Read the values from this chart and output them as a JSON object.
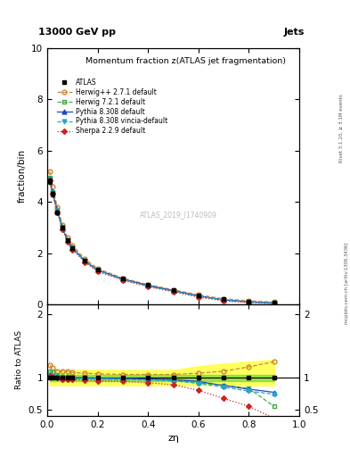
{
  "title_top": "13000 GeV pp",
  "title_right": "Jets",
  "plot_title": "Momentum fraction z(ATLAS jet fragmentation)",
  "xlabel": "zη",
  "ylabel_main": "fraction/bin",
  "ylabel_ratio": "Ratio to ATLAS",
  "watermark": "ATLAS_2019_I1740909",
  "right_label": "Rivet 3.1.10, ≥ 3.1M events",
  "arxiv_label": "mcplots.cern.ch [arXiv:1306.3436]",
  "x_data": [
    0.01,
    0.02,
    0.04,
    0.06,
    0.08,
    0.1,
    0.15,
    0.2,
    0.3,
    0.4,
    0.5,
    0.6,
    0.7,
    0.8,
    0.9
  ],
  "atlas_y": [
    4.8,
    4.3,
    3.6,
    3.0,
    2.5,
    2.2,
    1.7,
    1.35,
    1.0,
    0.75,
    0.55,
    0.35,
    0.2,
    0.12,
    0.07
  ],
  "atlas_err": [
    0.1,
    0.08,
    0.07,
    0.06,
    0.05,
    0.04,
    0.03,
    0.025,
    0.02,
    0.015,
    0.012,
    0.01,
    0.008,
    0.006,
    0.004
  ],
  "herwig_pp_y": [
    5.2,
    4.6,
    3.8,
    3.1,
    2.6,
    2.3,
    1.77,
    1.4,
    1.02,
    0.77,
    0.57,
    0.37,
    0.22,
    0.14,
    0.09
  ],
  "herwig721_y": [
    4.95,
    4.4,
    3.68,
    3.02,
    2.52,
    2.22,
    1.7,
    1.34,
    0.98,
    0.72,
    0.52,
    0.32,
    0.175,
    0.1,
    0.055
  ],
  "pythia8308_y": [
    4.9,
    4.38,
    3.66,
    3.0,
    2.5,
    2.2,
    1.69,
    1.34,
    0.99,
    0.74,
    0.54,
    0.33,
    0.175,
    0.098,
    0.054
  ],
  "pythia8308v_y": [
    4.88,
    4.35,
    3.64,
    2.98,
    2.48,
    2.18,
    1.67,
    1.32,
    0.97,
    0.72,
    0.52,
    0.32,
    0.17,
    0.095,
    0.052
  ],
  "sherpa229_y": [
    4.85,
    4.32,
    3.6,
    2.94,
    2.44,
    2.14,
    1.64,
    1.28,
    0.94,
    0.69,
    0.49,
    0.28,
    0.135,
    0.066,
    0.025
  ],
  "ratio_herwig_pp": [
    1.2,
    1.15,
    1.1,
    1.1,
    1.1,
    1.08,
    1.07,
    1.06,
    1.05,
    1.05,
    1.05,
    1.07,
    1.1,
    1.17,
    1.25
  ],
  "ratio_herwig721": [
    1.1,
    1.08,
    1.04,
    1.02,
    1.01,
    1.01,
    1.0,
    0.99,
    0.98,
    0.97,
    0.96,
    0.92,
    0.88,
    0.83,
    0.55
  ],
  "ratio_pythia8308": [
    1.05,
    1.03,
    1.02,
    1.0,
    1.0,
    1.0,
    0.995,
    0.993,
    0.99,
    0.98,
    0.97,
    0.94,
    0.875,
    0.82,
    0.77
  ],
  "ratio_pythia8308v": [
    1.04,
    1.02,
    1.01,
    0.993,
    0.993,
    0.99,
    0.985,
    0.978,
    0.97,
    0.96,
    0.95,
    0.91,
    0.85,
    0.79,
    0.74
  ],
  "ratio_sherpa229": [
    1.03,
    1.01,
    1.0,
    0.98,
    0.97,
    0.97,
    0.965,
    0.95,
    0.94,
    0.92,
    0.89,
    0.8,
    0.675,
    0.55,
    0.36
  ],
  "band_green_low": [
    0.95,
    0.95,
    0.95,
    0.95,
    0.95,
    0.95,
    0.95,
    0.95,
    0.95,
    0.95,
    0.95,
    0.95,
    0.95,
    0.95,
    0.95
  ],
  "band_green_high": [
    1.05,
    1.05,
    1.05,
    1.05,
    1.05,
    1.05,
    1.05,
    1.05,
    1.05,
    1.05,
    1.05,
    1.05,
    1.05,
    1.05,
    1.05
  ],
  "band_yellow_low": [
    0.88,
    0.88,
    0.88,
    0.88,
    0.88,
    0.88,
    0.88,
    0.88,
    0.88,
    0.88,
    0.88,
    0.88,
    0.88,
    0.88,
    0.88
  ],
  "band_yellow_high": [
    1.12,
    1.12,
    1.12,
    1.12,
    1.12,
    1.12,
    1.12,
    1.12,
    1.12,
    1.12,
    1.12,
    1.18,
    1.22,
    1.25,
    1.28
  ],
  "color_herwig_pp": "#cc8833",
  "color_herwig721": "#44aa44",
  "color_pythia8308": "#2244cc",
  "color_pythia8308v": "#22aacc",
  "color_sherpa229": "#cc2222",
  "ylim_main": [
    0,
    10
  ],
  "ylim_ratio_low": 0.4,
  "ylim_ratio_high": 2.15,
  "xlim": [
    0.0,
    1.0
  ]
}
